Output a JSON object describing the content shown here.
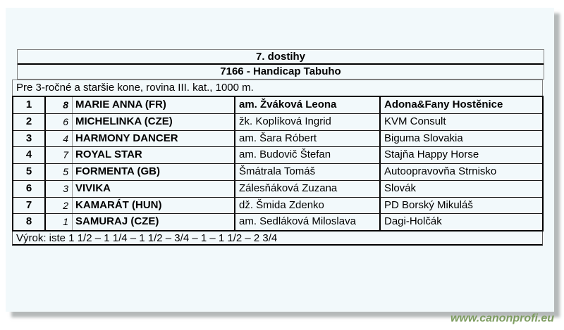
{
  "page": {
    "race_number_title": "7. dostihy",
    "race_name_title": "7166 - Handicap Tabuho",
    "race_conditions": "Pre 3-ročné a staršie kone, rovina III. kat., 1000 m.",
    "verdict": "Výrok: iste 1 1/2 – 1 1/4 – 1 1/2 – 3/4 – 1 – 1 1/2 – 2 3/4"
  },
  "results": [
    {
      "place": "1",
      "number": "8",
      "horse": "MARIE ANNA (FR)",
      "jockey": "am. Žváková Leona",
      "owner": "Adona&Fany Hostěnice"
    },
    {
      "place": "2",
      "number": "6",
      "horse": "MICHELINKA (CZE)",
      "jockey": "žk. Koplíková Ingrid",
      "owner": "KVM Consult"
    },
    {
      "place": "3",
      "number": "4",
      "horse": "HARMONY DANCER",
      "jockey": "am. Šara Róbert",
      "owner": "Biguma Slovakia"
    },
    {
      "place": "4",
      "number": "7",
      "horse": "ROYAL STAR",
      "jockey": "am. Budovič Štefan",
      "owner": "Stajňa Happy Horse"
    },
    {
      "place": "5",
      "number": "5",
      "horse": "FORMENTA (GB)",
      "jockey": "Šmátrala Tomáš",
      "owner": "Autoopravovňa Strnisko"
    },
    {
      "place": "6",
      "number": "3",
      "horse": "VIVIKA",
      "jockey": "Zálesňáková Zuzana",
      "owner": "Slovák"
    },
    {
      "place": "7",
      "number": "2",
      "horse": "KAMARÁT (HUN)",
      "jockey": "dž. Šmida Zdenko",
      "owner": "PD Borský Mikuláš"
    },
    {
      "place": "8",
      "number": "1",
      "horse": "SAMURAJ (CZE)",
      "jockey": "am. Sedláková Miloslava",
      "owner": "Dagi-Holčák"
    }
  ],
  "watermark": "www.canonprofi.eu",
  "colors": {
    "page_background": "#f2f9fb",
    "border_black": "#000000",
    "border_gray": "#7f7f7f",
    "watermark_green": "#7d9c60"
  }
}
